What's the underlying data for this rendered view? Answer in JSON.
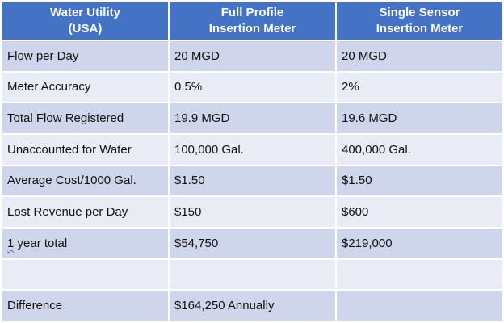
{
  "headers": [
    "Water Utility\n(USA)",
    "Full Profile\nInsertion Meter",
    "Single Sensor\nInsertion Meter"
  ],
  "rows": [
    {
      "label": "Flow per Day",
      "full_profile": "20 MGD",
      "single_sensor": "20 MGD"
    },
    {
      "label": "Meter Accuracy",
      "full_profile": "0.5%",
      "single_sensor": "2%"
    },
    {
      "label": "Total Flow Registered",
      "full_profile": "19.9 MGD",
      "single_sensor": "19.6 MGD"
    },
    {
      "label": "Unaccounted for Water",
      "full_profile": "100,000 Gal.",
      "single_sensor": "400,000 Gal."
    },
    {
      "label": "Average Cost/1000 Gal.",
      "full_profile": "$1.50",
      "single_sensor": "$1.50"
    },
    {
      "label": "Lost Revenue per Day",
      "full_profile": "$150",
      "single_sensor": "$600"
    },
    {
      "label_prefix": "1",
      "label_rest": " year total",
      "full_profile": "$54,750",
      "single_sensor": "$219,000"
    },
    {
      "label": "",
      "full_profile": "",
      "single_sensor": ""
    },
    {
      "label": "Difference",
      "full_profile": "$164,250 Annually",
      "single_sensor": ""
    }
  ],
  "colors": {
    "header": "#4472c4",
    "row_dark": "#cfd5ea",
    "row_light": "#e9ebf5"
  }
}
